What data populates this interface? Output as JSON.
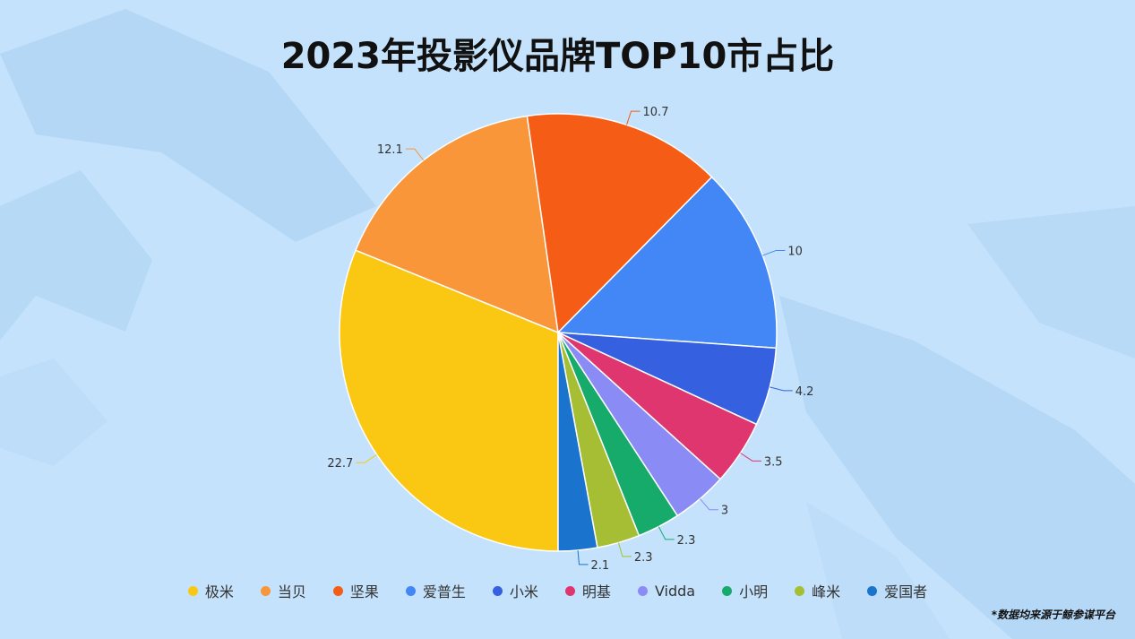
{
  "chart_data": {
    "type": "pie",
    "title": "2023年投影仪品牌TOP10市占比",
    "categories": [
      "极米",
      "当贝",
      "坚果",
      "爱普生",
      "小米",
      "明基",
      "Vidda",
      "小明",
      "峰米",
      "爱国者"
    ],
    "values": [
      22.7,
      12.1,
      10.7,
      10,
      4.2,
      3.5,
      3,
      2.3,
      2.3,
      2.1
    ],
    "labels": [
      "22.7",
      "12.1",
      "10.7",
      "10",
      "4.2",
      "3.5",
      "3",
      "2.3",
      "2.3",
      "2.1"
    ],
    "colors": [
      "#fac812",
      "#f9963a",
      "#f55d16",
      "#4287f5",
      "#3561e0",
      "#df3670",
      "#8b8bf6",
      "#16ab6b",
      "#a6be33",
      "#1a73cc"
    ],
    "legend_position": "bottom"
  },
  "source_note": "*数据均来源于鲸参谋平台"
}
